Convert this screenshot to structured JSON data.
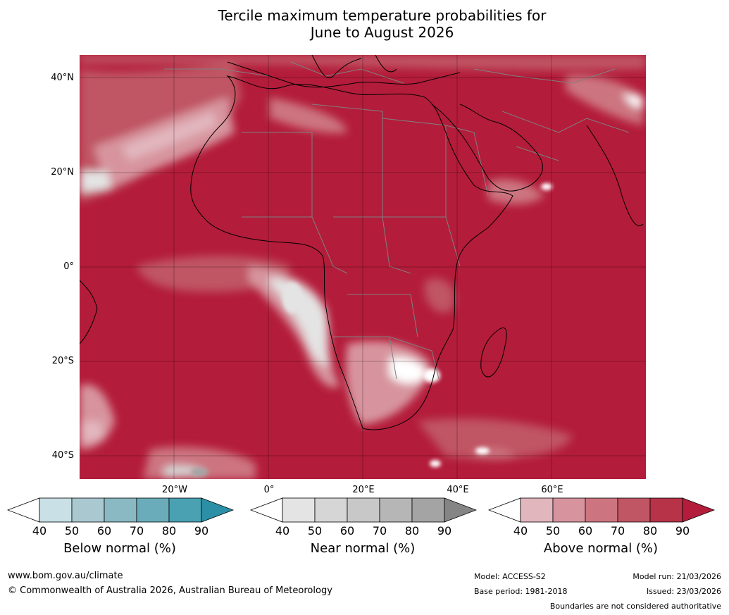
{
  "title": {
    "line1": "Tercile maximum temperature probabilities for",
    "line2": "June to August 2026"
  },
  "map": {
    "lat_labels": [
      "40°N",
      "20°N",
      "0°",
      "20°S",
      "40°S"
    ],
    "lon_labels": [
      "20°W",
      "0°",
      "20°E",
      "40°E",
      "60°E"
    ],
    "background_color": "#b31c3a",
    "coast_color": "#000000",
    "border_color": "#808080"
  },
  "colorbars": [
    {
      "title": "Below normal (%)",
      "ticks": [
        "40",
        "50",
        "60",
        "70",
        "80",
        "90"
      ],
      "colors": [
        "#ffffff",
        "#c8e0e6",
        "#a9c8cf",
        "#8ab8c3",
        "#6aacba",
        "#4aa1b2",
        "#2b8fa6"
      ]
    },
    {
      "title": "Near normal (%)",
      "ticks": [
        "40",
        "50",
        "60",
        "70",
        "80",
        "90"
      ],
      "colors": [
        "#ffffff",
        "#e4e4e4",
        "#d6d6d6",
        "#c8c8c8",
        "#b6b6b6",
        "#a4a4a4",
        "#858585"
      ]
    },
    {
      "title": "Above normal (%)",
      "ticks": [
        "40",
        "50",
        "60",
        "70",
        "80",
        "90"
      ],
      "colors": [
        "#ffffff",
        "#e2b6bd",
        "#d7949e",
        "#cc7580",
        "#c05563",
        "#b73348",
        "#b31c3a"
      ]
    }
  ],
  "footer": {
    "website": "www.bom.gov.au/climate",
    "copyright": "© Commonwealth of Australia 2026, Australian Bureau of Meteorology",
    "model": "Model: ACCESS-S2",
    "base_period": "Base period: 1981-2018",
    "model_run": "Model run: 21/03/2026",
    "issued": "Issued: 23/03/2026",
    "disclaimer": "Boundaries are not considered authoritative"
  }
}
